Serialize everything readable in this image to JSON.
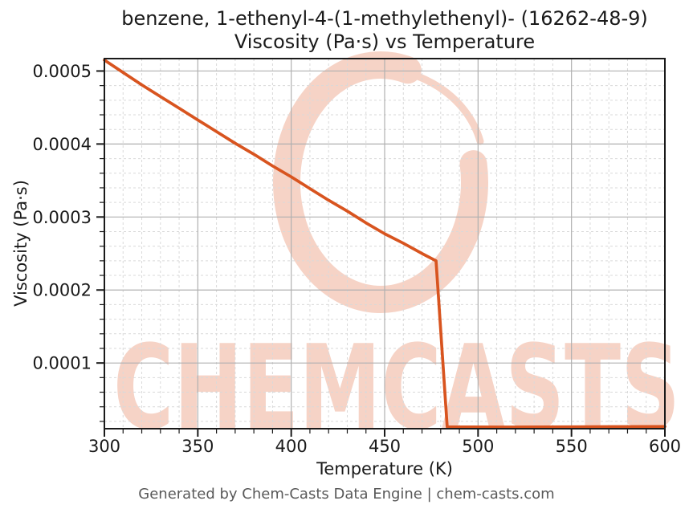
{
  "chart_data": {
    "type": "line",
    "title": "benzene, 1-ethenyl-4-(1-methylethenyl)- (16262-48-9)",
    "subtitle": "Viscosity (Pa·s) vs Temperature",
    "xlabel": "Temperature (K)",
    "ylabel": "Viscosity (Pa·s)",
    "xlim": [
      300,
      600
    ],
    "ylim": [
      1e-05,
      0.000517
    ],
    "x_major_ticks": [
      300,
      350,
      400,
      450,
      500,
      550,
      600
    ],
    "x_minor_step": 10,
    "y_major_ticks": [
      0.0001,
      0.0002,
      0.0003,
      0.0004,
      0.0005
    ],
    "y_minor_step": 2e-05,
    "grid": {
      "major": "solid",
      "minor": "dashed",
      "visible": true
    },
    "legend": "none",
    "colors": {
      "line": "#d8541f",
      "grid_major": "#b0b0b0",
      "grid_minor": "#d9d9d9",
      "axis": "#1a1a1a",
      "text": "#1a1a1a"
    },
    "series": [
      {
        "name": "Viscosity (Pa·s)",
        "color": "#d8541f",
        "points": [
          [
            300,
            0.000515
          ],
          [
            310,
            0.000498
          ],
          [
            320,
            0.000481
          ],
          [
            330,
            0.000465
          ],
          [
            340,
            0.000449
          ],
          [
            350,
            0.000433
          ],
          [
            360,
            0.000417
          ],
          [
            370,
            0.000401
          ],
          [
            380,
            0.000386
          ],
          [
            390,
            0.00037
          ],
          [
            400,
            0.000355
          ],
          [
            410,
            0.000339
          ],
          [
            420,
            0.000323
          ],
          [
            430,
            0.000308
          ],
          [
            440,
            0.000292
          ],
          [
            450,
            0.000277
          ],
          [
            460,
            0.000264
          ],
          [
            470,
            0.00025
          ],
          [
            477.5,
            0.00024
          ],
          [
            483.5,
            1.25e-05
          ],
          [
            510,
            1.22e-05
          ],
          [
            550,
            1.25e-05
          ],
          [
            600,
            1.3e-05
          ]
        ]
      }
    ]
  },
  "watermark": {
    "text": "CHEMCASTS",
    "color": "#f6d3c6"
  },
  "footer": {
    "credit": "Generated by Chem-Casts Data Engine | chem-casts.com"
  }
}
